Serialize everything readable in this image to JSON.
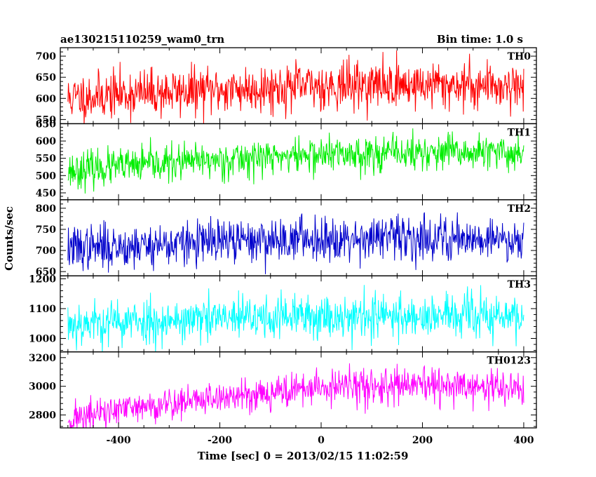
{
  "chart_data": {
    "type": "line",
    "title": "ae130215110259_wam0_trn",
    "subtitle": "Bin time: 1.0 s",
    "xlabel": "Time [sec] 0 = 2013/02/15 11:02:59",
    "ylabel": "Counts/sec",
    "xlim": [
      -515,
      425
    ],
    "x_ticks": [
      -400,
      -200,
      0,
      200,
      400
    ],
    "x_range_data": [
      -500,
      400
    ],
    "bin_time": 1.0,
    "grid": false,
    "panels": [
      {
        "name": "TH0",
        "color": "#ff0000",
        "ylim": [
          540,
          720
        ],
        "y_ticks": [
          550,
          600,
          650,
          700
        ],
        "trend_x": [
          -500,
          -400,
          -300,
          -200,
          -100,
          0,
          100,
          200,
          300,
          400
        ],
        "trend_y": [
          600,
          610,
          615,
          620,
          625,
          630,
          632,
          632,
          632,
          630
        ],
        "noise": 28,
        "seed": 11
      },
      {
        "name": "TH1",
        "color": "#00ee00",
        "ylim": [
          430,
          650
        ],
        "y_ticks": [
          450,
          500,
          550,
          600,
          650
        ],
        "trend_x": [
          -500,
          -400,
          -300,
          -200,
          -100,
          0,
          100,
          200,
          300,
          400
        ],
        "trend_y": [
          515,
          525,
          535,
          545,
          555,
          560,
          565,
          565,
          565,
          565
        ],
        "noise": 26,
        "seed": 23
      },
      {
        "name": "TH2",
        "color": "#0000cc",
        "ylim": [
          640,
          820
        ],
        "y_ticks": [
          650,
          700,
          750,
          800
        ],
        "trend_x": [
          -500,
          -400,
          -300,
          -200,
          -100,
          0,
          100,
          200,
          300,
          400
        ],
        "trend_y": [
          705,
          710,
          715,
          720,
          725,
          730,
          730,
          730,
          730,
          725
        ],
        "noise": 26,
        "seed": 37
      },
      {
        "name": "TH3",
        "color": "#00ffff",
        "ylim": [
          955,
          1210
        ],
        "y_ticks": [
          1000,
          1100,
          1200
        ],
        "trend_x": [
          -500,
          -400,
          -300,
          -200,
          -100,
          0,
          100,
          200,
          300,
          400
        ],
        "trend_y": [
          1050,
          1055,
          1060,
          1065,
          1070,
          1075,
          1075,
          1075,
          1075,
          1070
        ],
        "noise": 38,
        "seed": 53
      },
      {
        "name": "TH0123",
        "color": "#ff00ff",
        "ylim": [
          2710,
          3240
        ],
        "y_ticks": [
          2800,
          3000,
          3200
        ],
        "trend_x": [
          -500,
          -400,
          -300,
          -200,
          -100,
          0,
          100,
          200,
          300,
          400
        ],
        "trend_y": [
          2770,
          2830,
          2880,
          2920,
          2960,
          2990,
          3000,
          3000,
          2995,
          2980
        ],
        "noise": 60,
        "seed": 71
      }
    ]
  }
}
